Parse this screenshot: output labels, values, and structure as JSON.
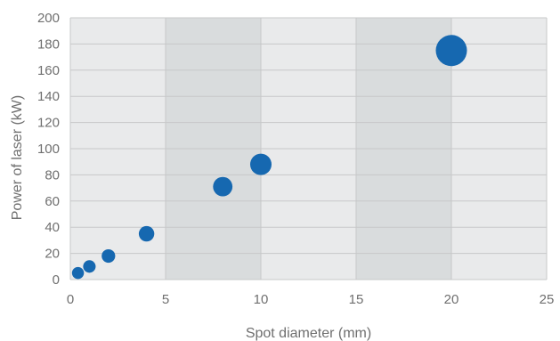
{
  "chart_data": {
    "type": "scatter",
    "title": "",
    "xlabel": "Spot diameter (mm)",
    "ylabel": "Power of laser (kW)",
    "xlim": [
      0,
      25
    ],
    "ylim": [
      0,
      200
    ],
    "x_ticks": [
      0,
      5,
      10,
      15,
      20,
      25
    ],
    "y_ticks": [
      0,
      20,
      40,
      60,
      80,
      100,
      120,
      140,
      160,
      180,
      200
    ],
    "grid": "horizontal",
    "shaded_x_bands": [
      [
        5,
        10
      ],
      [
        15,
        20
      ]
    ],
    "legend": "none",
    "marker_size_encodes": "spot diameter",
    "series": [
      {
        "color": "#1668b0",
        "points": [
          {
            "x": 0.4,
            "y": 5
          },
          {
            "x": 1,
            "y": 10
          },
          {
            "x": 2,
            "y": 18
          },
          {
            "x": 4,
            "y": 35
          },
          {
            "x": 8,
            "y": 71
          },
          {
            "x": 10,
            "y": 88
          },
          {
            "x": 20,
            "y": 175
          }
        ]
      }
    ],
    "colors": {
      "plot_background": "#e9eaeb",
      "shaded_band": "#d9dcdd",
      "grid": "#c7c8c9",
      "marker": "#1668b0",
      "text": "#6f6f6f"
    }
  }
}
